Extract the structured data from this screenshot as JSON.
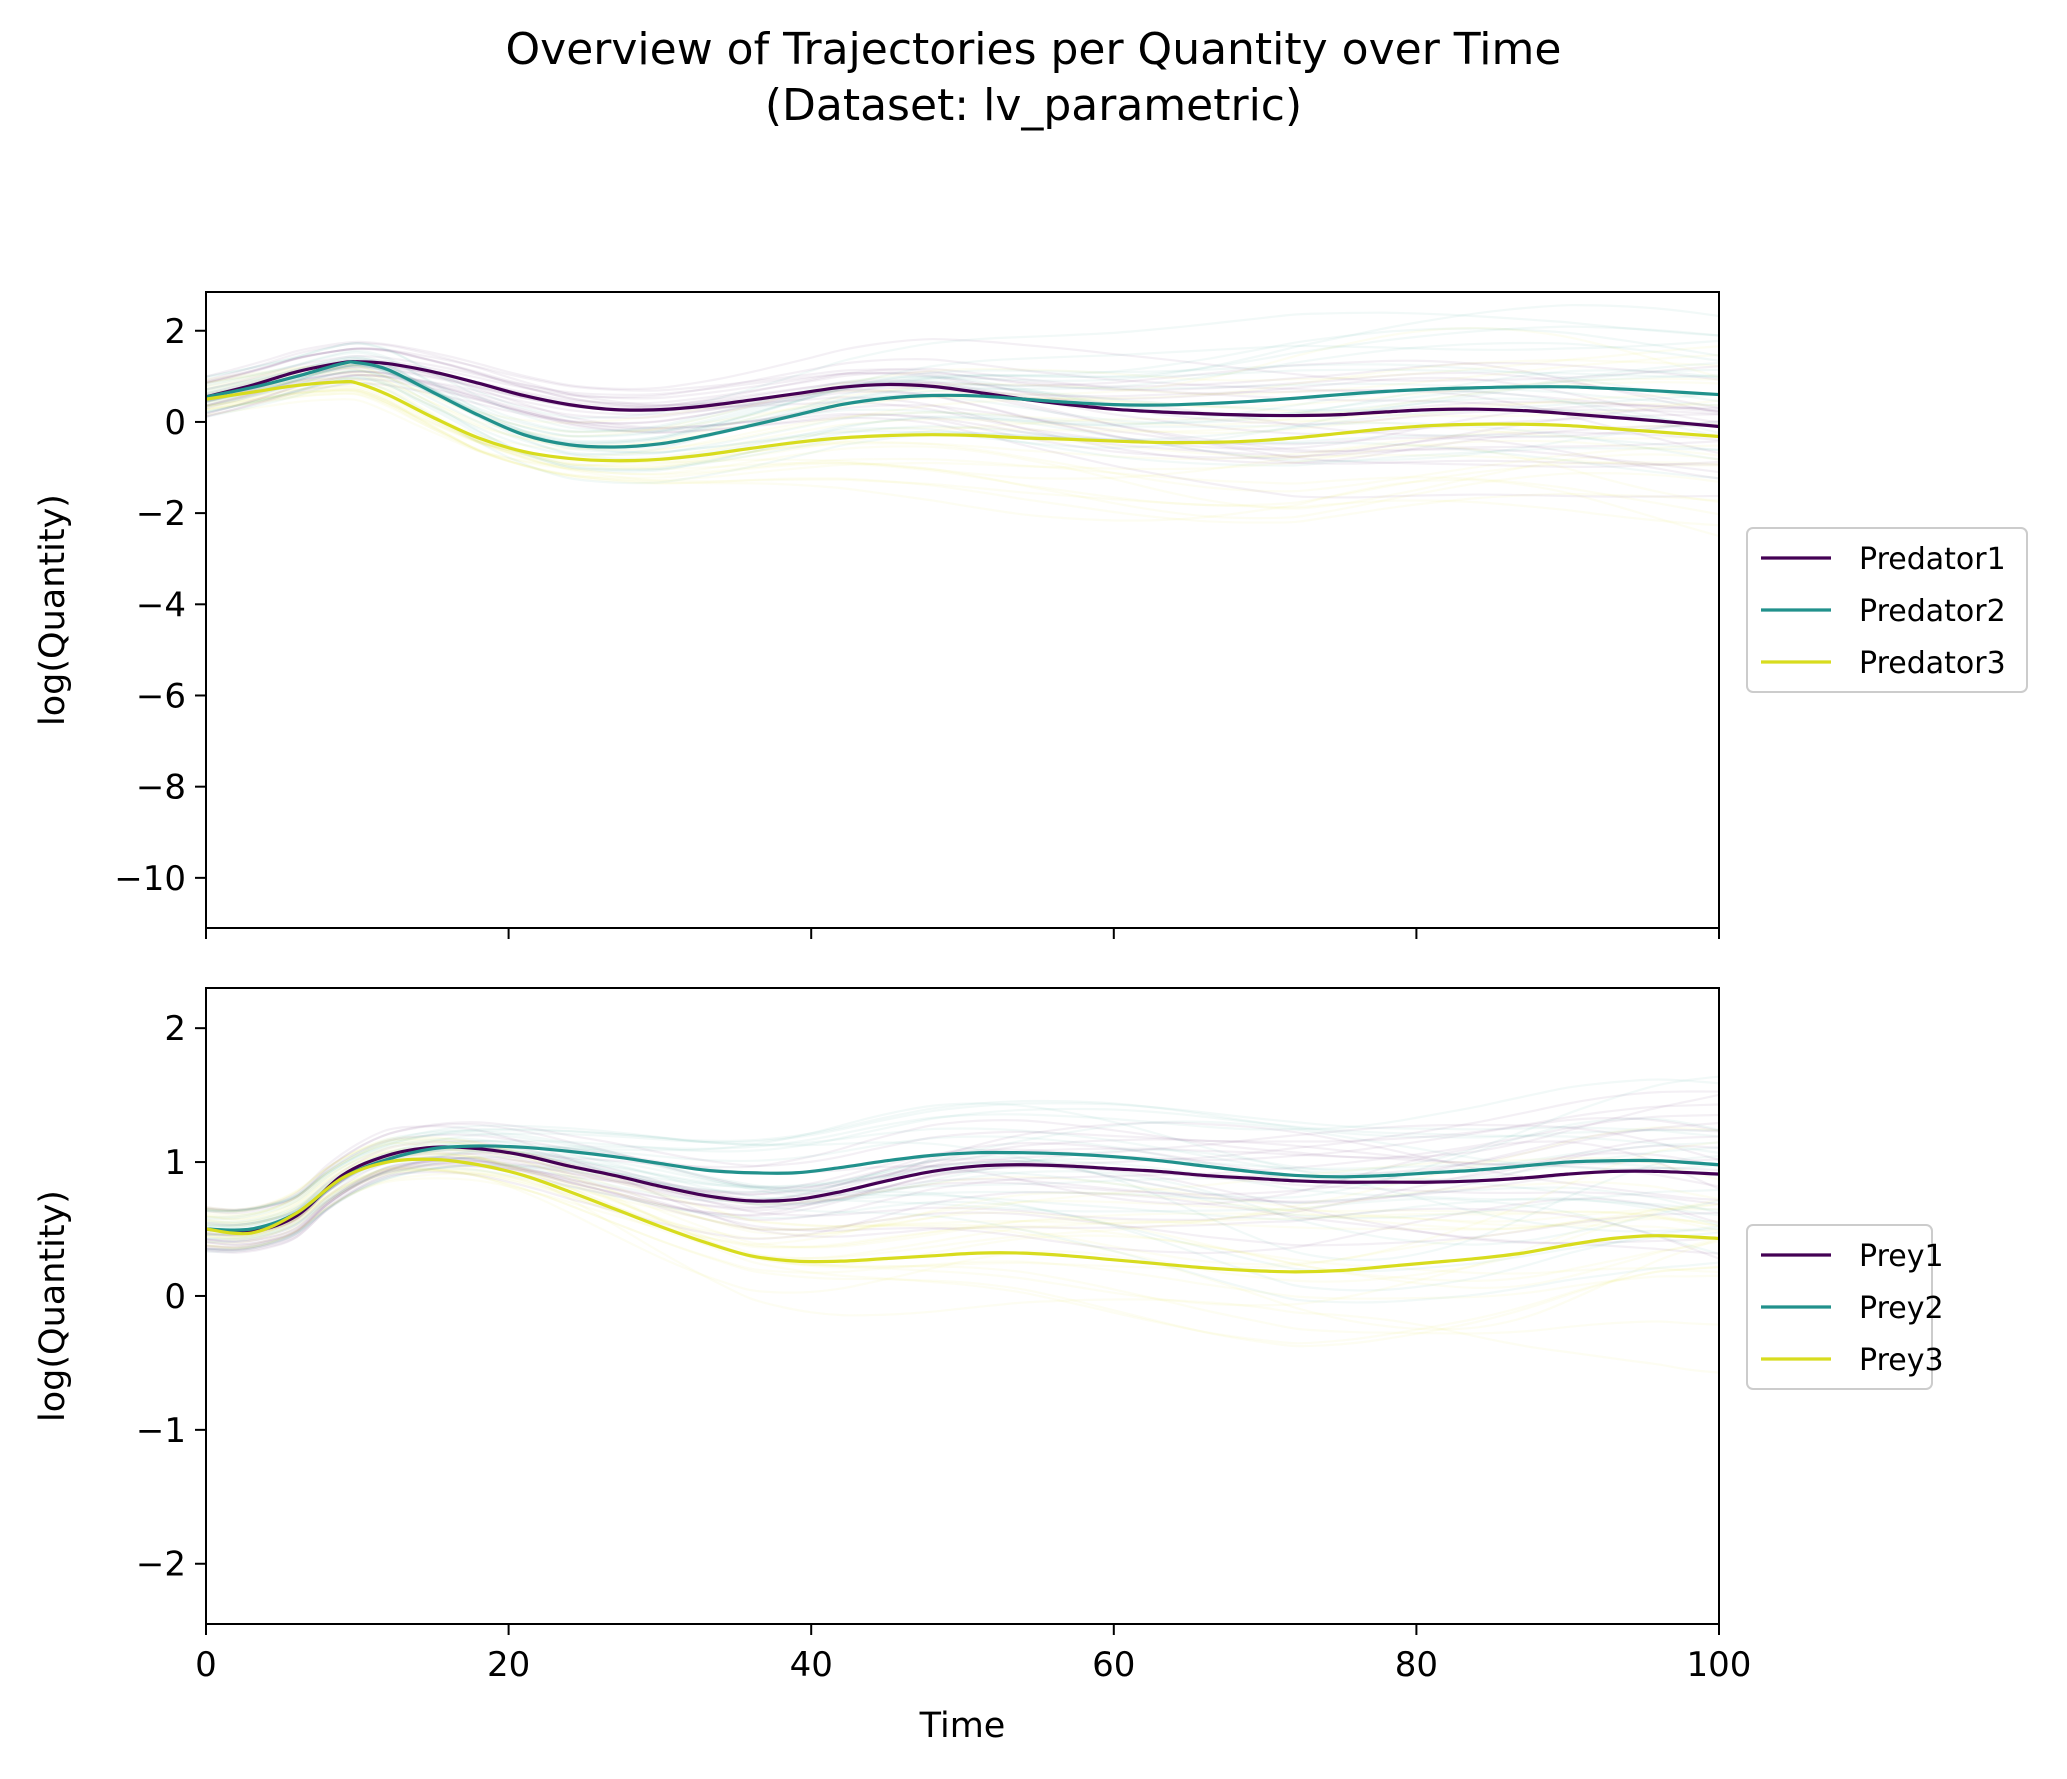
{
  "figure": {
    "title": "Overview of Trajectories per Quantity over Time",
    "subtitle": "(Dataset: lv_parametric)"
  },
  "chart_data": [
    {
      "type": "line",
      "xlabel": "",
      "ylabel": "log(Quantity)",
      "xlim": [
        0,
        100
      ],
      "ylim": [
        -11.1,
        2.85
      ],
      "xticks": [
        0,
        20,
        40,
        60,
        80,
        100
      ],
      "yticks": [
        2,
        0,
        -2,
        -4,
        -6,
        -8,
        -10
      ],
      "xtick_labels_visible": false,
      "legend_placement": "right",
      "background_trajectories": "many faint semi-transparent individual trajectories per quantity",
      "series": [
        {
          "name": "Predator1",
          "color": "#440154",
          "x": [
            0,
            3,
            6,
            9,
            10,
            12,
            15,
            18,
            21,
            24,
            27,
            30,
            33,
            36,
            39,
            42,
            45,
            48,
            51,
            54,
            57,
            60,
            63,
            66,
            69,
            72,
            75,
            78,
            81,
            84,
            87,
            90,
            93,
            96,
            100
          ],
          "values": [
            0.55,
            0.8,
            1.1,
            1.3,
            1.32,
            1.28,
            1.1,
            0.85,
            0.58,
            0.38,
            0.27,
            0.27,
            0.35,
            0.48,
            0.62,
            0.76,
            0.82,
            0.78,
            0.65,
            0.5,
            0.38,
            0.28,
            0.22,
            0.18,
            0.15,
            0.14,
            0.16,
            0.22,
            0.27,
            0.28,
            0.25,
            0.18,
            0.1,
            0.02,
            -0.1
          ]
        },
        {
          "name": "Predator2",
          "color": "#21918c",
          "x": [
            0,
            3,
            6,
            9,
            10,
            12,
            15,
            18,
            21,
            24,
            27,
            30,
            33,
            36,
            39,
            42,
            45,
            48,
            51,
            54,
            57,
            60,
            63,
            66,
            69,
            72,
            75,
            78,
            81,
            84,
            87,
            90,
            93,
            96,
            100
          ],
          "values": [
            0.55,
            0.75,
            1.0,
            1.28,
            1.3,
            1.15,
            0.65,
            0.15,
            -0.28,
            -0.5,
            -0.55,
            -0.48,
            -0.3,
            -0.08,
            0.15,
            0.38,
            0.52,
            0.58,
            0.57,
            0.5,
            0.43,
            0.38,
            0.37,
            0.4,
            0.45,
            0.52,
            0.6,
            0.67,
            0.72,
            0.75,
            0.77,
            0.77,
            0.73,
            0.68,
            0.6
          ]
        },
        {
          "name": "Predator3",
          "color": "#d8dc1e",
          "x": [
            0,
            3,
            6,
            9,
            10,
            12,
            15,
            18,
            21,
            24,
            27,
            30,
            33,
            36,
            39,
            42,
            45,
            48,
            51,
            54,
            57,
            60,
            63,
            66,
            69,
            72,
            75,
            78,
            81,
            84,
            87,
            90,
            93,
            96,
            100
          ],
          "values": [
            0.5,
            0.65,
            0.8,
            0.88,
            0.85,
            0.6,
            0.1,
            -0.35,
            -0.65,
            -0.8,
            -0.85,
            -0.82,
            -0.72,
            -0.58,
            -0.45,
            -0.35,
            -0.3,
            -0.28,
            -0.3,
            -0.35,
            -0.38,
            -0.42,
            -0.45,
            -0.45,
            -0.42,
            -0.35,
            -0.25,
            -0.15,
            -0.08,
            -0.05,
            -0.05,
            -0.08,
            -0.15,
            -0.22,
            -0.32
          ]
        }
      ]
    },
    {
      "type": "line",
      "xlabel": "Time",
      "ylabel": "log(Quantity)",
      "xlim": [
        0,
        100
      ],
      "ylim": [
        -2.45,
        2.3
      ],
      "xticks": [
        0,
        20,
        40,
        60,
        80,
        100
      ],
      "yticks": [
        2,
        1,
        0,
        -1,
        -2
      ],
      "xtick_labels_visible": true,
      "legend_placement": "right",
      "background_trajectories": "many faint semi-transparent individual trajectories per quantity",
      "series": [
        {
          "name": "Prey1",
          "color": "#440154",
          "x": [
            0,
            3,
            6,
            9,
            12,
            15,
            18,
            21,
            24,
            27,
            30,
            33,
            36,
            39,
            42,
            45,
            48,
            51,
            54,
            57,
            60,
            63,
            66,
            69,
            72,
            75,
            78,
            81,
            84,
            87,
            90,
            93,
            96,
            100
          ],
          "values": [
            0.5,
            0.48,
            0.6,
            0.9,
            1.05,
            1.11,
            1.1,
            1.05,
            0.97,
            0.9,
            0.82,
            0.75,
            0.71,
            0.72,
            0.78,
            0.86,
            0.93,
            0.97,
            0.98,
            0.97,
            0.95,
            0.93,
            0.9,
            0.88,
            0.86,
            0.85,
            0.85,
            0.85,
            0.86,
            0.88,
            0.91,
            0.93,
            0.93,
            0.91
          ]
        },
        {
          "name": "Prey2",
          "color": "#21918c",
          "x": [
            0,
            3,
            6,
            9,
            12,
            15,
            18,
            21,
            24,
            27,
            30,
            33,
            36,
            39,
            42,
            45,
            48,
            51,
            54,
            57,
            60,
            63,
            66,
            69,
            72,
            75,
            78,
            81,
            84,
            87,
            90,
            93,
            96,
            100
          ],
          "values": [
            0.5,
            0.5,
            0.62,
            0.88,
            1.02,
            1.1,
            1.12,
            1.11,
            1.08,
            1.04,
            0.99,
            0.94,
            0.92,
            0.92,
            0.96,
            1.01,
            1.05,
            1.07,
            1.07,
            1.06,
            1.04,
            1.01,
            0.97,
            0.93,
            0.9,
            0.89,
            0.9,
            0.92,
            0.94,
            0.97,
            1.0,
            1.01,
            1.01,
            0.98
          ]
        },
        {
          "name": "Prey3",
          "color": "#d8dc1e",
          "x": [
            0,
            3,
            6,
            9,
            12,
            15,
            18,
            21,
            24,
            27,
            30,
            33,
            36,
            39,
            42,
            45,
            48,
            51,
            54,
            57,
            60,
            63,
            66,
            69,
            72,
            75,
            78,
            81,
            84,
            87,
            90,
            93,
            96,
            100
          ],
          "values": [
            0.5,
            0.47,
            0.62,
            0.88,
            1.0,
            1.02,
            0.98,
            0.9,
            0.78,
            0.65,
            0.52,
            0.4,
            0.3,
            0.26,
            0.26,
            0.28,
            0.3,
            0.32,
            0.32,
            0.3,
            0.27,
            0.24,
            0.21,
            0.19,
            0.18,
            0.19,
            0.22,
            0.25,
            0.28,
            0.32,
            0.38,
            0.43,
            0.45,
            0.43
          ]
        }
      ]
    }
  ]
}
